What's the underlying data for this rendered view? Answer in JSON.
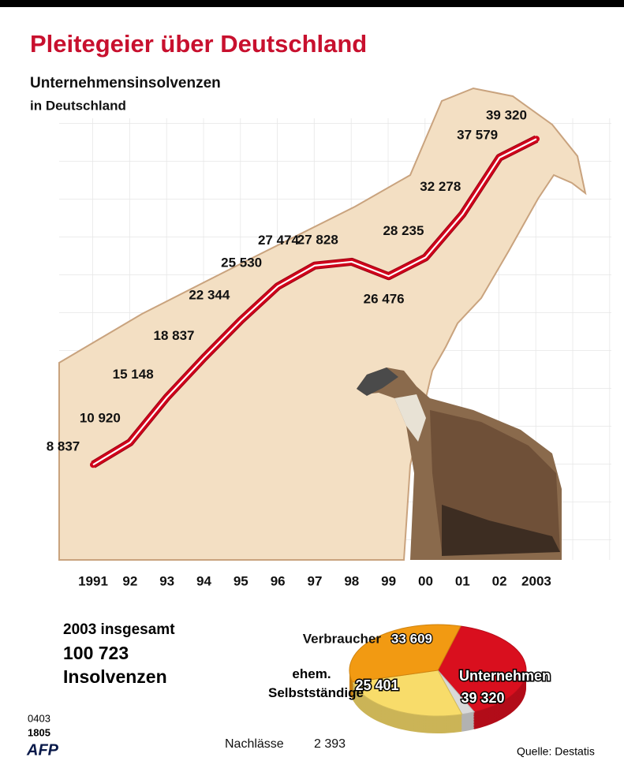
{
  "title": "Pleitegeier über Deutschland",
  "summary": [
    "2003 insgesamt",
    "100 723",
    "Insolvenzen"
  ],
  "codes": [
    "0403",
    "1805"
  ],
  "agency": "AFP",
  "source": "Quelle: Destatis",
  "chart_data": [
    {
      "type": "line",
      "title": "Unternehmensinsolvenzen",
      "subtitle": "in Deutschland",
      "categories": [
        "1991",
        "92",
        "93",
        "94",
        "95",
        "96",
        "97",
        "98",
        "99",
        "00",
        "01",
        "02",
        "2003"
      ],
      "values": [
        8837,
        10920,
        15148,
        18837,
        22344,
        25530,
        27474,
        27828,
        26476,
        28235,
        32278,
        37579,
        39320
      ],
      "value_labels": [
        "8 837",
        "10 920",
        "15 148",
        "18 837",
        "22 344",
        "25 530",
        "27 474",
        "27 828",
        "26 476",
        "28 235",
        "32 278",
        "37 579",
        "39 320"
      ],
      "color": "#d0021b"
    },
    {
      "type": "pie",
      "categories": [
        "Unternehmen",
        "Nachlässe",
        "ehem. Selbstständige",
        "Verbraucher"
      ],
      "values": [
        39320,
        2393,
        25401,
        33609
      ],
      "value_labels": [
        "39 320",
        "2 393",
        "25 401",
        "33 609"
      ],
      "colors": [
        "#d90f1e",
        "#d9d9d9",
        "#f8dc6a",
        "#f29a12"
      ]
    }
  ]
}
